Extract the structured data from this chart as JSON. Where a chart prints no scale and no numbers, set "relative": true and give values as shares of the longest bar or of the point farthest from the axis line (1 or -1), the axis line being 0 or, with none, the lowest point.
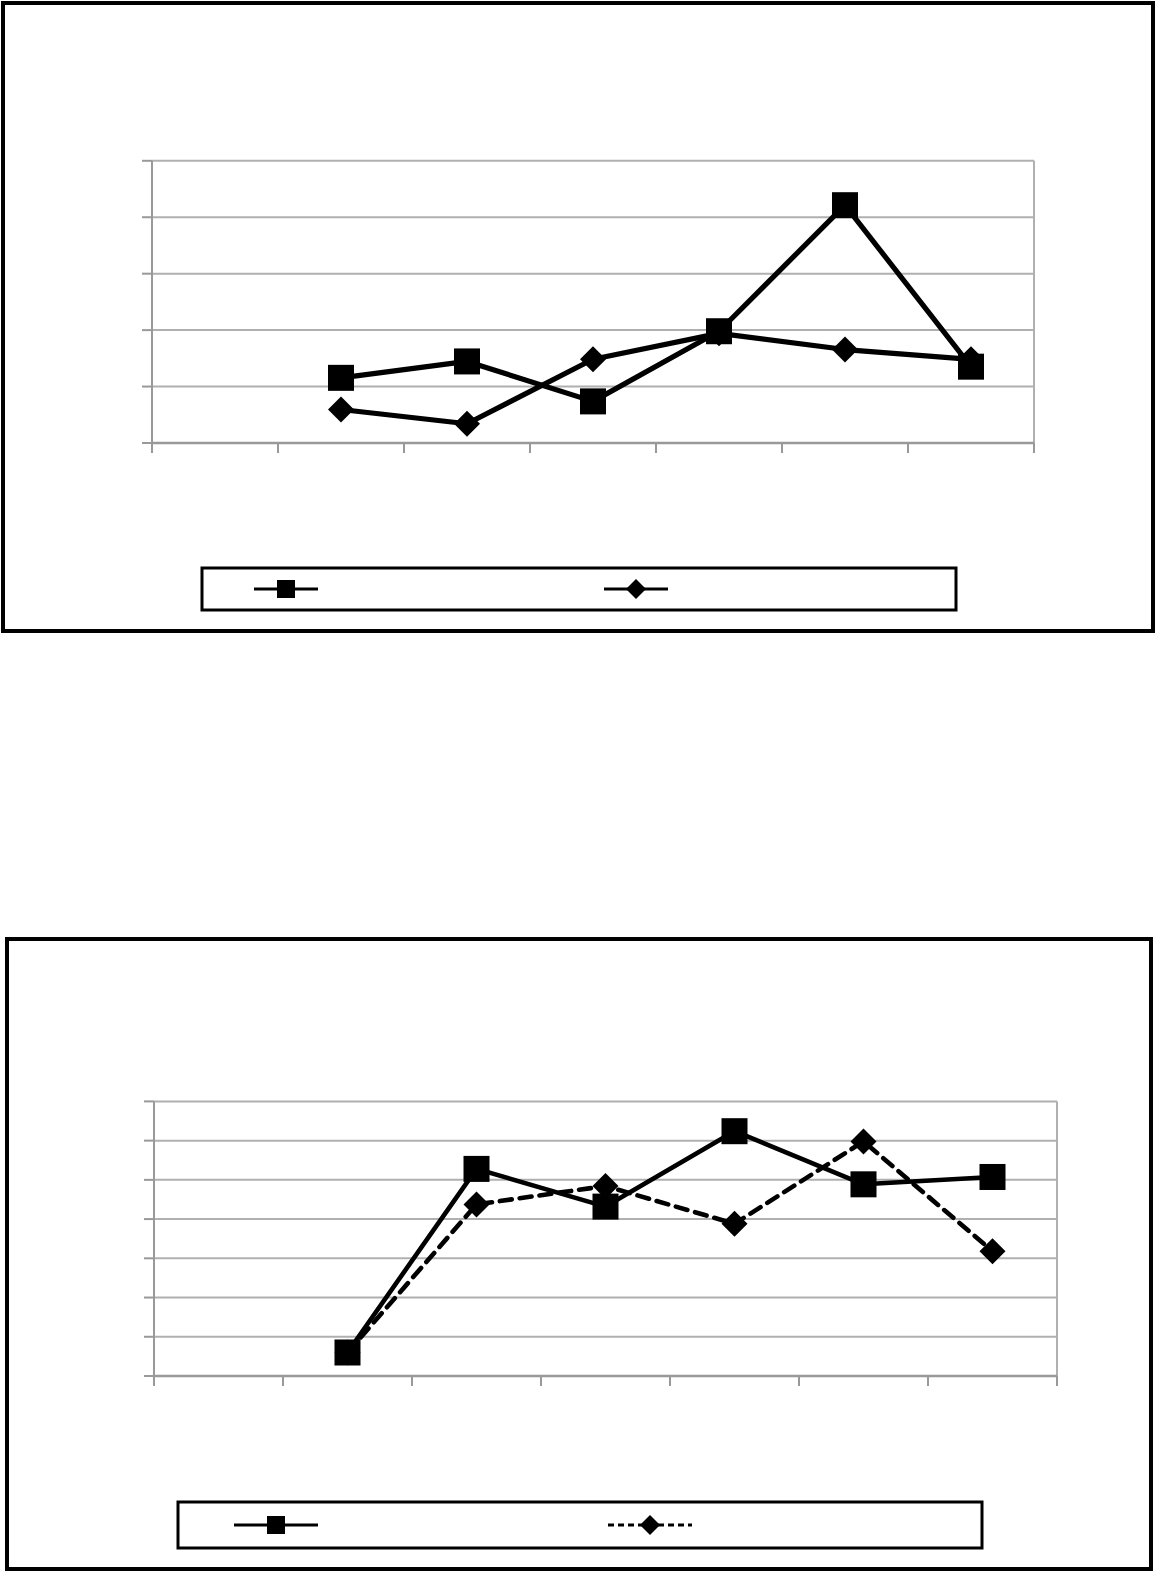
{
  "chart_data": [
    {
      "type": "line",
      "relative": true,
      "categories": [
        null,
        null,
        null,
        null,
        null,
        null,
        null
      ],
      "series": [
        {
          "color": "#000000",
          "marker": "square",
          "line_style": "solid",
          "values": [
            null,
            0.274,
            0.343,
            0.175,
            0.47,
            1,
            0.321
          ]
        },
        {
          "color": "#000000",
          "marker": "diamond",
          "line_style": "solid",
          "values": [
            null,
            0.141,
            0.081,
            0.352,
            0.461,
            0.393,
            0.352
          ]
        }
      ],
      "grid": "y"
    },
    {
      "type": "line",
      "relative": true,
      "categories": [
        null,
        null,
        null,
        null,
        null,
        null,
        null
      ],
      "series": [
        {
          "color": "#000000",
          "marker": "square",
          "line_style": "solid",
          "values": [
            null,
            0.096,
            0.846,
            0.692,
            1,
            0.783,
            0.813
          ]
        },
        {
          "color": "#000000",
          "marker": "diamond",
          "line_style": "dashed",
          "values": [
            null,
            0.096,
            0.701,
            0.776,
            0.622,
            0.958,
            0.51
          ]
        }
      ],
      "grid": "y"
    }
  ]
}
